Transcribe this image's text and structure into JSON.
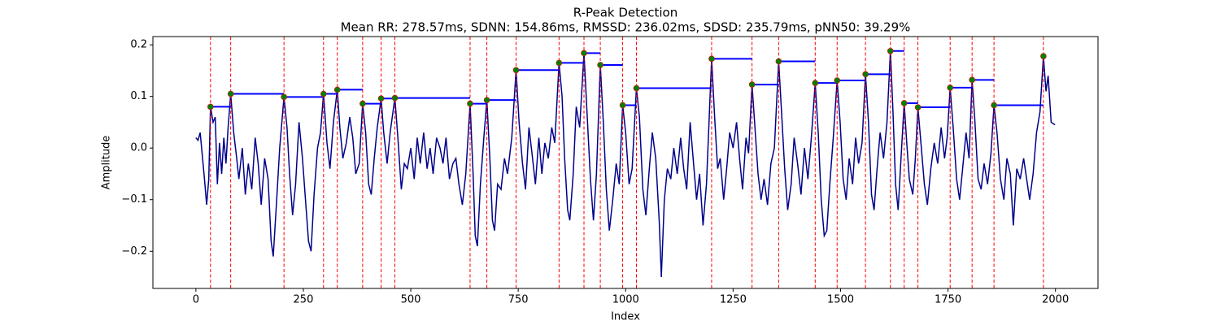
{
  "chart_data": {
    "type": "line",
    "title": "R-Peak Detection",
    "subtitle": "Mean RR: 278.57ms, SDNN: 154.86ms, RMSSD: 236.02ms, SDSD: 235.79ms, pNN50: 39.29%",
    "x_label": "Index",
    "y_label": "Amplitude",
    "color": "#00008b",
    "x": [
      0,
      5,
      10,
      20,
      25,
      30,
      34,
      40,
      45,
      50,
      55,
      60,
      65,
      70,
      75,
      81,
      88,
      95,
      100,
      108,
      115,
      122,
      130,
      138,
      145,
      152,
      160,
      168,
      175,
      180,
      188,
      195,
      205,
      212,
      218,
      225,
      232,
      240,
      248,
      255,
      262,
      268,
      275,
      283,
      290,
      297,
      305,
      312,
      320,
      329,
      335,
      342,
      350,
      358,
      365,
      372,
      380,
      388,
      395,
      402,
      408,
      415,
      422,
      431,
      437,
      445,
      452,
      463,
      470,
      478,
      485,
      492,
      500,
      508,
      515,
      522,
      530,
      538,
      545,
      552,
      560,
      568,
      575,
      582,
      590,
      598,
      605,
      612,
      620,
      628,
      638,
      645,
      650,
      655,
      662,
      670,
      677,
      684,
      690,
      695,
      702,
      710,
      718,
      725,
      735,
      745,
      752,
      760,
      767,
      775,
      782,
      790,
      798,
      805,
      812,
      820,
      828,
      835,
      845,
      852,
      858,
      865,
      870,
      878,
      885,
      893,
      903,
      910,
      918,
      925,
      932,
      941,
      948,
      955,
      962,
      970,
      978,
      985,
      993,
      1000,
      1008,
      1015,
      1025,
      1032,
      1040,
      1047,
      1055,
      1062,
      1070,
      1078,
      1083,
      1090,
      1097,
      1105,
      1112,
      1120,
      1128,
      1135,
      1142,
      1150,
      1158,
      1165,
      1172,
      1180,
      1188,
      1200,
      1207,
      1214,
      1220,
      1228,
      1235,
      1242,
      1250,
      1258,
      1265,
      1272,
      1280,
      1286,
      1294,
      1300,
      1308,
      1315,
      1322,
      1330,
      1338,
      1346,
      1356,
      1362,
      1370,
      1377,
      1385,
      1392,
      1400,
      1408,
      1416,
      1424,
      1432,
      1441,
      1448,
      1455,
      1462,
      1468,
      1475,
      1483,
      1492,
      1499,
      1506,
      1513,
      1520,
      1528,
      1535,
      1542,
      1550,
      1558,
      1565,
      1572,
      1578,
      1585,
      1592,
      1600,
      1608,
      1616,
      1622,
      1628,
      1634,
      1640,
      1648,
      1654,
      1660,
      1668,
      1674,
      1680,
      1688,
      1695,
      1702,
      1710,
      1718,
      1726,
      1734,
      1742,
      1748,
      1755,
      1762,
      1770,
      1777,
      1784,
      1792,
      1799,
      1806,
      1812,
      1820,
      1827,
      1834,
      1842,
      1850,
      1857,
      1864,
      1872,
      1880,
      1887,
      1895,
      1902,
      1910,
      1918,
      1926,
      1933,
      1940,
      1948,
      1956,
      1964,
      1972,
      1978,
      1983,
      1990,
      1999
    ],
    "values": [
      0.02,
      0.015,
      0.03,
      -0.06,
      -0.11,
      -0.06,
      0.08,
      0.05,
      0.06,
      -0.07,
      0.01,
      -0.05,
      0.02,
      -0.03,
      0.04,
      0.105,
      0.03,
      -0.02,
      -0.06,
      0.0,
      -0.09,
      -0.03,
      -0.08,
      0.02,
      -0.03,
      -0.11,
      -0.02,
      -0.06,
      -0.18,
      -0.21,
      -0.1,
      0.0,
      0.099,
      0.04,
      -0.05,
      -0.13,
      -0.07,
      0.05,
      -0.02,
      -0.1,
      -0.18,
      -0.2,
      -0.09,
      0.0,
      0.03,
      0.105,
      0.01,
      -0.04,
      0.05,
      0.113,
      0.04,
      -0.02,
      0.01,
      0.06,
      0.02,
      -0.05,
      -0.03,
      0.086,
      0.03,
      -0.07,
      -0.09,
      -0.02,
      0.04,
      0.096,
      0.03,
      -0.03,
      0.03,
      0.097,
      0.02,
      -0.08,
      -0.03,
      -0.04,
      0.0,
      -0.06,
      0.02,
      -0.03,
      0.03,
      -0.04,
      0.0,
      -0.05,
      0.02,
      0.0,
      -0.03,
      0.02,
      -0.06,
      -0.03,
      -0.02,
      -0.07,
      -0.11,
      -0.05,
      0.086,
      -0.05,
      -0.17,
      -0.19,
      -0.07,
      0.02,
      0.093,
      -0.02,
      -0.14,
      -0.16,
      -0.07,
      -0.08,
      -0.02,
      -0.05,
      0.02,
      0.151,
      0.05,
      -0.03,
      -0.08,
      0.04,
      -0.01,
      -0.07,
      0.02,
      -0.05,
      0.01,
      -0.02,
      0.04,
      0.01,
      0.165,
      0.1,
      -0.02,
      -0.12,
      -0.14,
      -0.05,
      0.08,
      0.04,
      0.184,
      0.07,
      -0.06,
      -0.14,
      -0.05,
      0.161,
      0.05,
      -0.08,
      -0.16,
      -0.1,
      -0.03,
      -0.07,
      0.083,
      0.03,
      -0.07,
      -0.04,
      0.116,
      0.06,
      -0.08,
      -0.13,
      -0.04,
      0.03,
      -0.02,
      -0.14,
      -0.25,
      -0.1,
      -0.04,
      -0.06,
      0.0,
      -0.05,
      0.02,
      -0.04,
      -0.08,
      0.05,
      -0.03,
      -0.1,
      -0.05,
      -0.15,
      -0.07,
      0.173,
      0.06,
      -0.04,
      -0.02,
      -0.1,
      -0.04,
      0.03,
      0.0,
      0.05,
      -0.02,
      -0.08,
      0.02,
      -0.01,
      0.123,
      0.05,
      -0.05,
      -0.1,
      -0.06,
      -0.11,
      -0.03,
      0.0,
      0.168,
      0.08,
      -0.04,
      -0.12,
      -0.07,
      0.02,
      -0.03,
      -0.09,
      0.0,
      -0.06,
      0.02,
      0.126,
      0.03,
      -0.1,
      -0.17,
      -0.16,
      -0.07,
      0.02,
      0.131,
      0.05,
      -0.06,
      -0.1,
      -0.02,
      -0.07,
      0.02,
      -0.03,
      0.01,
      0.143,
      0.05,
      -0.09,
      -0.12,
      -0.04,
      0.03,
      -0.02,
      0.05,
      0.188,
      0.07,
      -0.07,
      -0.12,
      -0.03,
      0.087,
      0.01,
      -0.06,
      -0.09,
      -0.02,
      0.079,
      0.0,
      -0.07,
      -0.11,
      -0.04,
      0.01,
      -0.03,
      0.04,
      -0.02,
      0.02,
      0.117,
      0.04,
      -0.06,
      -0.1,
      -0.04,
      0.03,
      -0.02,
      0.132,
      0.06,
      -0.06,
      -0.08,
      -0.03,
      -0.07,
      -0.01,
      0.083,
      0.03,
      -0.06,
      -0.1,
      -0.02,
      -0.05,
      -0.15,
      -0.04,
      -0.06,
      -0.02,
      -0.06,
      -0.1,
      -0.05,
      0.03,
      0.07,
      0.178,
      0.11,
      0.14,
      0.05,
      0.045
    ],
    "peaks": {
      "x": [
        34,
        81,
        205,
        297,
        329,
        388,
        431,
        463,
        638,
        677,
        745,
        845,
        903,
        941,
        993,
        1025,
        1200,
        1294,
        1356,
        1441,
        1492,
        1558,
        1616,
        1648,
        1680,
        1755,
        1806,
        1857,
        1972
      ],
      "values": [
        0.08,
        0.105,
        0.099,
        0.105,
        0.113,
        0.086,
        0.096,
        0.097,
        0.086,
        0.093,
        0.151,
        0.165,
        0.184,
        0.161,
        0.083,
        0.116,
        0.173,
        0.123,
        0.168,
        0.126,
        0.131,
        0.143,
        0.188,
        0.087,
        0.079,
        0.117,
        0.132,
        0.083,
        0.178
      ]
    },
    "peak_color": "green",
    "peak_edge_color": "red",
    "peak_line_color": "red",
    "interval_color": "blue",
    "xlim": [
      -100,
      2099
    ],
    "ylim": [
      -0.272,
      0.216
    ],
    "xticks": [
      0,
      250,
      500,
      750,
      1000,
      1250,
      1500,
      1750,
      2000
    ],
    "yticks": [
      {
        "value": -0.2,
        "label": "−0.2"
      },
      {
        "value": -0.1,
        "label": "−0.1"
      },
      {
        "value": 0,
        "label": "0.0"
      },
      0.1,
      0.2
    ]
  }
}
